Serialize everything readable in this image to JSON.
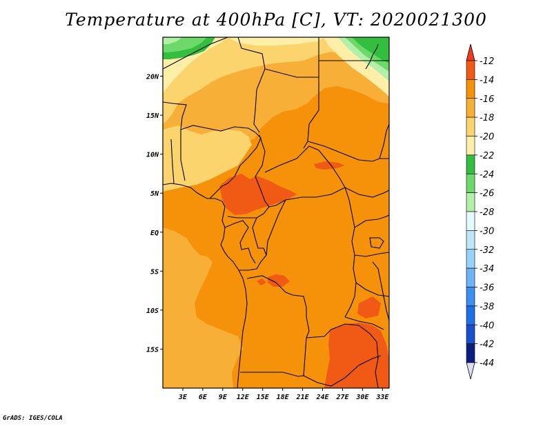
{
  "title": "Temperature at 400hPa [C], VT: 2020021300",
  "footer": "GrADS: IGES/COLA",
  "map": {
    "lon_range": [
      0,
      34
    ],
    "lat_range": [
      -20,
      25
    ],
    "lon_ticks": [
      {
        "v": 3,
        "label": "3E"
      },
      {
        "v": 6,
        "label": "6E"
      },
      {
        "v": 9,
        "label": "9E"
      },
      {
        "v": 12,
        "label": "12E"
      },
      {
        "v": 15,
        "label": "15E"
      },
      {
        "v": 18,
        "label": "18E"
      },
      {
        "v": 21,
        "label": "21E"
      },
      {
        "v": 24,
        "label": "24E"
      },
      {
        "v": 27,
        "label": "27E"
      },
      {
        "v": 30,
        "label": "30E"
      },
      {
        "v": 33,
        "label": "33E"
      }
    ],
    "lat_ticks": [
      {
        "v": 20,
        "label": "20N"
      },
      {
        "v": 15,
        "label": "15N"
      },
      {
        "v": 10,
        "label": "10N"
      },
      {
        "v": 5,
        "label": "5N"
      },
      {
        "v": 0,
        "label": "EQ"
      },
      {
        "v": -5,
        "label": "5S"
      },
      {
        "v": -10,
        "label": "10S"
      },
      {
        "v": -15,
        "label": "15S"
      }
    ]
  },
  "colorbar": {
    "levels": [
      "-12",
      "-14",
      "-16",
      "-18",
      "-20",
      "-22",
      "-24",
      "-26",
      "-28",
      "-30",
      "-32",
      "-34",
      "-36",
      "-38",
      "-40",
      "-42",
      "-44"
    ],
    "colors": [
      "#f05a14",
      "#f5920a",
      "#f7af37",
      "#fbd46e",
      "#fdeea8",
      "#33be3f",
      "#6ed96b",
      "#b2f0a8",
      "#e4fbfd",
      "#bde6f8",
      "#96d2fb",
      "#6eb3f5",
      "#3c8ff0",
      "#1e6ee6",
      "#1650cd",
      "#0c1e7d"
    ],
    "top_color": "#f03c1e",
    "bottom_color": "#dcdcf5"
  },
  "field_colors": {
    "t12": "#f05a14",
    "t14": "#f5920a",
    "t16": "#f7af37",
    "t18": "#fbd46e",
    "t20": "#fdeea8",
    "t22": "#33be3f",
    "t24": "#6ed96b",
    "t26": "#b2f0a8"
  }
}
